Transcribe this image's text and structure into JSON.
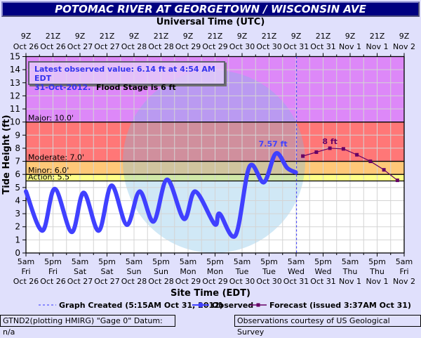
{
  "title": "POTOMAC RIVER AT GEORGETOWN / WISCONSIN AVE",
  "annotation": {
    "line1": "Latest observed value: 6.14 ft at 4:54 AM EDT",
    "line2_date": "31-Oct-2012.",
    "line2_flood": "Flood Stage is 6 ft"
  },
  "footer": {
    "left": "GTND2(plotting HMIRG) \"Gage 0\" Datum: n/a",
    "right": "Observations courtesy of US Geological Survey"
  },
  "colors": {
    "background": "#e0e0fc",
    "major": "#dd88f8",
    "moderate": "#ff7777",
    "minor": "#ffc878",
    "action": "#ffff88",
    "observed": "#4040ff",
    "forecast": "#660066"
  },
  "chart_data": {
    "type": "line",
    "title": "POTOMAC RIVER AT GEORGETOWN / WISCONSIN AVE",
    "top_xlabel": "Universal Time (UTC)",
    "xlabel": "Site Time (EDT)",
    "ylabel": "Tide Height (ft)",
    "ylim": [
      0,
      15
    ],
    "yticks": [
      0,
      1,
      2,
      3,
      4,
      5,
      6,
      7,
      8,
      9,
      10,
      11,
      12,
      13,
      14,
      15
    ],
    "x_unit": "hours since 5am EDT Fri Oct 26 2012",
    "xlim": [
      0,
      168
    ],
    "top_ticks": [
      [
        "9Z",
        "Oct 26"
      ],
      [
        "21Z",
        "Oct 26"
      ],
      [
        "9Z",
        "Oct 27"
      ],
      [
        "21Z",
        "Oct 27"
      ],
      [
        "9Z",
        "Oct 28"
      ],
      [
        "21Z",
        "Oct 28"
      ],
      [
        "9Z",
        "Oct 29"
      ],
      [
        "21Z",
        "Oct 29"
      ],
      [
        "9Z",
        "Oct 30"
      ],
      [
        "21Z",
        "Oct 30"
      ],
      [
        "9Z",
        "Oct 31"
      ],
      [
        "21Z",
        "Oct 31"
      ],
      [
        "9Z",
        "Nov 1"
      ],
      [
        "21Z",
        "Nov 1"
      ],
      [
        "9Z",
        "Nov 2"
      ]
    ],
    "bottom_ticks": [
      [
        "5am",
        "Fri",
        "Oct 26"
      ],
      [
        "5pm",
        "Fri",
        "Oct 26"
      ],
      [
        "5am",
        "Sat",
        "Oct 27"
      ],
      [
        "5pm",
        "Sat",
        "Oct 27"
      ],
      [
        "5am",
        "Sun",
        "Oct 28"
      ],
      [
        "5pm",
        "Sun",
        "Oct 28"
      ],
      [
        "5am",
        "Mon",
        "Oct 29"
      ],
      [
        "5pm",
        "Mon",
        "Oct 29"
      ],
      [
        "5am",
        "Tue",
        "Oct 30"
      ],
      [
        "5pm",
        "Tue",
        "Oct 30"
      ],
      [
        "5am",
        "Wed",
        "Oct 31"
      ],
      [
        "5pm",
        "Wed",
        "Oct 31"
      ],
      [
        "5am",
        "Thu",
        "Nov 1"
      ],
      [
        "5pm",
        "Thu",
        "Nov 1"
      ],
      [
        "5am",
        "Fri",
        "Nov 2"
      ]
    ],
    "flood_categories": [
      {
        "label": "Major: 10.0'",
        "from": 10,
        "to": 15
      },
      {
        "label": "Moderate: 7.0'",
        "from": 7,
        "to": 10
      },
      {
        "label": "Minor: 6.0'",
        "from": 6,
        "to": 7
      },
      {
        "label": "Action: 5.5'",
        "from": 5.5,
        "to": 6
      }
    ],
    "graph_created_hour": 120.2,
    "series": [
      {
        "name": "Observed",
        "x": [
          0,
          7.3,
          12.8,
          20.3,
          25.6,
          32.3,
          38,
          44.8,
          50.5,
          56.7,
          62.7,
          70.2,
          75.2,
          83.8,
          86,
          93.1,
          99.3,
          105.7,
          111,
          116,
          119.9
        ],
        "y": [
          4.7,
          1.7,
          4.9,
          1.6,
          4.6,
          1.7,
          5.15,
          2.15,
          4.7,
          2.4,
          5.6,
          2.6,
          4.7,
          2.2,
          3.0,
          1.35,
          6.6,
          5.4,
          7.6,
          6.5,
          6.15
        ],
        "peak_label": "7.57 ft"
      },
      {
        "name": "Forecast (issued 3:37AM Oct 31)",
        "x": [
          123,
          129,
          135,
          141,
          147,
          153,
          159,
          165
        ],
        "y": [
          7.4,
          7.7,
          8.0,
          7.95,
          7.5,
          7.0,
          6.35,
          5.55
        ],
        "peak_label": "8 ft"
      }
    ],
    "legend": {
      "graph_created": "Graph Created (5:15AM Oct 31, 2012)",
      "observed": "Observed",
      "forecast": "Forecast (issued 3:37AM Oct 31)",
      "position": "bottom"
    }
  }
}
